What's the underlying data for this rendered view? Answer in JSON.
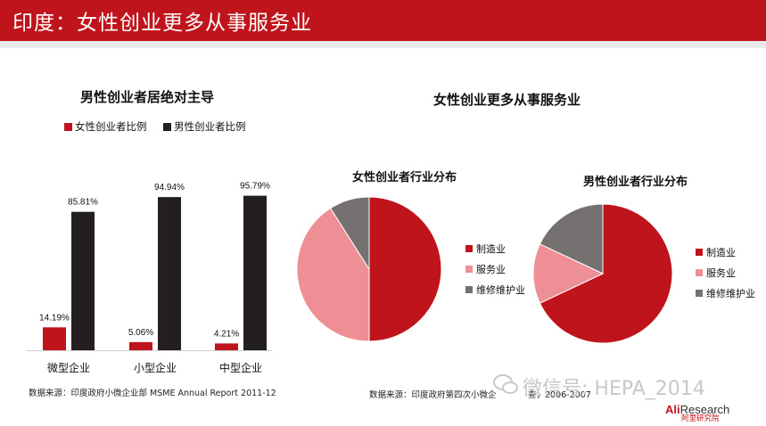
{
  "page": {
    "title": "印度：女性创业更多从事服务业",
    "watermark": "微信号: HEPA_2014",
    "logo": {
      "ali": "Ali",
      "research": "Research",
      "cn": "阿里研究院"
    }
  },
  "colors": {
    "header": "#c0141c",
    "female": "#c0141c",
    "male": "#231f20",
    "manufacturing": "#c0141c",
    "services": "#ed8f95",
    "maintenance": "#767171"
  },
  "chart_data": [
    {
      "type": "bar",
      "title": "男性创业者居绝对主导",
      "categories": [
        "微型企业",
        "小型企业",
        "中型企业"
      ],
      "series": [
        {
          "name": "女性创业者比例",
          "values": [
            14.19,
            5.06,
            4.21
          ],
          "labels": [
            "14.19%",
            "5.06%",
            "4.21%"
          ]
        },
        {
          "name": "男性创业者比例",
          "values": [
            85.81,
            94.94,
            95.79
          ],
          "labels": [
            "85.81%",
            "94.94%",
            "95.79%"
          ]
        }
      ],
      "ylim": [
        0,
        100
      ],
      "legend": "top",
      "grid": false,
      "source": "数据来源：印度政府小微企业部 MSME Annual Report 2011-12"
    },
    {
      "type": "pie",
      "title": "女性创业者行业分布",
      "labels": [
        "制造业",
        "服务业",
        "维修维护业"
      ],
      "values": [
        50,
        41,
        9
      ],
      "legend": "right"
    },
    {
      "type": "pie",
      "title": "男性创业者行业分布",
      "labels": [
        "制造业",
        "服务业",
        "维修维护业"
      ],
      "values": [
        68,
        14,
        18
      ],
      "legend": "right"
    }
  ],
  "right_panel": {
    "title": "女性创业更多从事服务业",
    "source_prefix": "数据来源：印度政府第四次小微企",
    "source_suffix": "查，2006-2007"
  }
}
